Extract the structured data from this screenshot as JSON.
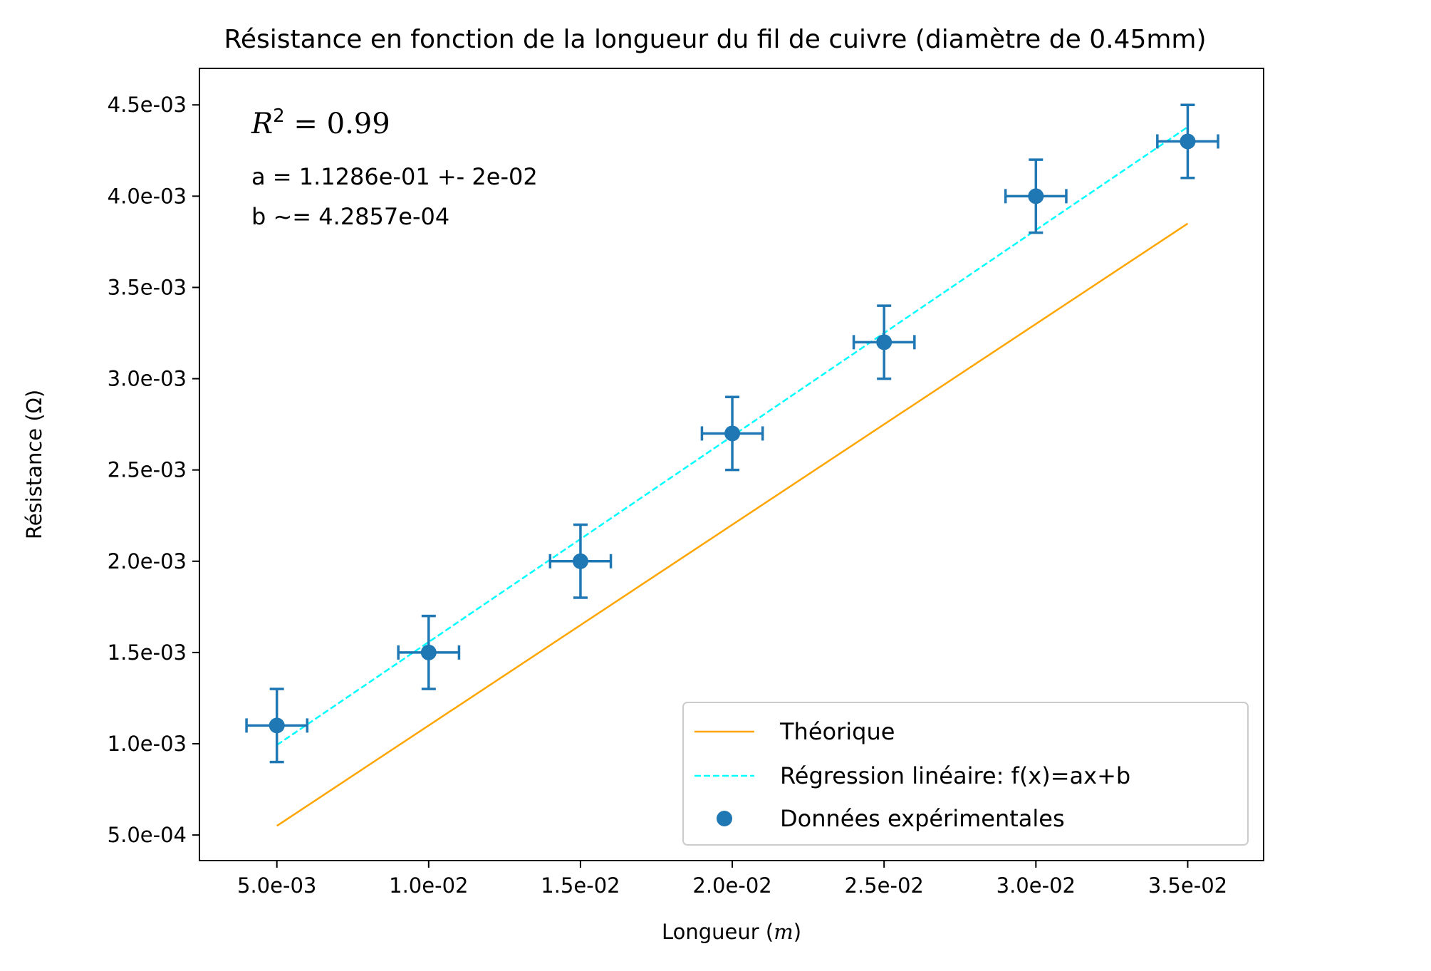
{
  "chart_data": {
    "type": "scatter",
    "title": "Résistance en fonction de la longueur du fil de cuivre (diamètre de 0.45mm)",
    "xlabel_text": "Longueur (",
    "xlabel_unit": "m",
    "xlabel_close": ")",
    "ylabel": "Résistance (Ω)",
    "xlim": [
      0.00245,
      0.0375
    ],
    "ylim": [
      0.00036,
      0.0047
    ],
    "x_ticks": [
      0.005,
      0.01,
      0.015,
      0.02,
      0.025,
      0.03,
      0.035
    ],
    "x_tick_labels": [
      "5.0e-03",
      "1.0e-02",
      "1.5e-02",
      "2.0e-02",
      "2.5e-02",
      "3.0e-02",
      "3.5e-02"
    ],
    "y_ticks": [
      0.0005,
      0.001,
      0.0015,
      0.002,
      0.0025,
      0.003,
      0.0035,
      0.004,
      0.0045
    ],
    "y_tick_labels": [
      "5.0e-04",
      "1.0e-03",
      "1.5e-03",
      "2.0e-03",
      "2.5e-03",
      "3.0e-03",
      "3.5e-03",
      "4.0e-03",
      "4.5e-03"
    ],
    "grid": false,
    "legend_position": "bottom-right",
    "series": [
      {
        "name": "Théorique",
        "kind": "line",
        "style": "solid",
        "color": "#FFA500",
        "x": [
          0.005,
          0.035
        ],
        "y": [
          0.00055,
          0.00385
        ]
      },
      {
        "name": "Régression linéaire: f(x)=ax+b",
        "kind": "line",
        "style": "dashed",
        "color": "#00FFFF",
        "x": [
          0.005,
          0.035
        ],
        "y": [
          0.000993,
          0.004379
        ]
      },
      {
        "name": "Données expérimentales",
        "kind": "errorbar",
        "color": "#1F77B4",
        "x": [
          0.005,
          0.01,
          0.015,
          0.02,
          0.025,
          0.03,
          0.035
        ],
        "y": [
          0.0011,
          0.0015,
          0.002,
          0.0027,
          0.0032,
          0.004,
          0.0043
        ],
        "x_err": 0.001,
        "y_err": 0.0002
      }
    ],
    "annotations": {
      "r2_symbol": "R",
      "r2_exponent": "2",
      "r2_value": " = 0.99",
      "a_text": "a = 1.1286e-01 +- 2e-02",
      "b_text": "b ~= 4.2857e-04"
    }
  }
}
